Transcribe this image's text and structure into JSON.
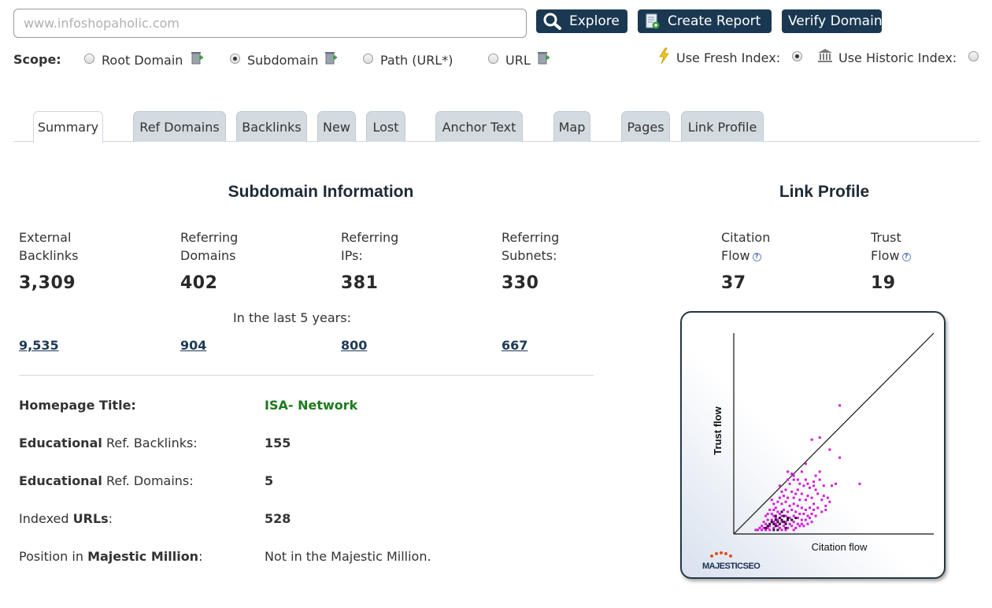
{
  "search": {
    "placeholder": "www.infoshopaholic.com",
    "value": ""
  },
  "toolbar": {
    "explore_label": "Explore",
    "create_report_label": "Create Report",
    "verify_domain_label": "Verify Domain"
  },
  "scope": {
    "label": "Scope:",
    "options": [
      {
        "label": "Root Domain",
        "selected": false
      },
      {
        "label": "Subdomain",
        "selected": true
      },
      {
        "label": "Path (URL*)",
        "selected": false
      },
      {
        "label": "URL",
        "selected": false
      }
    ],
    "fresh_index_label": "Use Fresh Index:",
    "historic_index_label": "Use Historic Index:",
    "fresh_selected": true
  },
  "tabs": [
    {
      "label": "Summary",
      "active": true
    },
    {
      "label": "Ref Domains"
    },
    {
      "label": "Backlinks"
    },
    {
      "label": "New"
    },
    {
      "label": "Lost"
    },
    {
      "label": "Anchor Text"
    },
    {
      "label": "Map"
    },
    {
      "label": "Pages"
    },
    {
      "label": "Link Profile"
    }
  ],
  "subdomain_info": {
    "title": "Subdomain Information",
    "stats": [
      {
        "label_line1": "External",
        "label_line2": "Backlinks",
        "value": "3,309",
        "history": "9,535"
      },
      {
        "label_line1": "Referring",
        "label_line2": "Domains",
        "value": "402",
        "history": "904"
      },
      {
        "label_line1": "Referring",
        "label_line2": "IPs:",
        "value": "381",
        "history": "800"
      },
      {
        "label_line1": "Referring",
        "label_line2": "Subnets:",
        "value": "330",
        "history": "667"
      }
    ],
    "history_caption": "In the last 5 years:",
    "details": {
      "homepage_title_label": "Homepage Title:",
      "homepage_title_value": "ISA- Network",
      "edu_backlinks_bold": "Educational",
      "edu_backlinks_rest": " Ref. Backlinks:",
      "edu_backlinks_value": "155",
      "edu_domains_bold": "Educational",
      "edu_domains_rest": " Ref. Domains:",
      "edu_domains_value": "5",
      "indexed_pre": "Indexed ",
      "indexed_bold": "URLs",
      "indexed_post": ":",
      "indexed_value": "528",
      "position_pre": "Position in ",
      "position_bold": "Majestic Million",
      "position_post": ":",
      "position_value": "Not in the Majestic Million."
    }
  },
  "link_profile": {
    "title": "Link Profile",
    "citation_line1": "Citation",
    "citation_line2": "Flow",
    "citation_value": "37",
    "trust_line1": "Trust",
    "trust_line2": "Flow",
    "trust_value": "19",
    "help_icon": "question-circle-icon"
  },
  "chart_data": {
    "type": "scatter",
    "xlabel": "Citation flow",
    "ylabel": "Trust flow",
    "xlim": [
      0,
      100
    ],
    "ylim": [
      0,
      100
    ],
    "diagonal": true,
    "grid": false,
    "logo_text": "MAJESTICSEO",
    "colors": {
      "points": "#d21fd2",
      "dense_points": "#3b0f3b",
      "axis": "#111111"
    },
    "series": [
      {
        "name": "",
        "points": [
          [
            53,
            64
          ],
          [
            43,
            48
          ],
          [
            39,
            47
          ],
          [
            48,
            42
          ],
          [
            53,
            38
          ],
          [
            36,
            35
          ],
          [
            43,
            31
          ],
          [
            30,
            29
          ],
          [
            34,
            31
          ],
          [
            27,
            27
          ],
          [
            36,
            27
          ],
          [
            40,
            26
          ],
          [
            45,
            24
          ],
          [
            49,
            24
          ],
          [
            51,
            25
          ],
          [
            63,
            25
          ],
          [
            48,
            16
          ],
          [
            29,
            30
          ],
          [
            30,
            27
          ],
          [
            32,
            27
          ],
          [
            28,
            25
          ],
          [
            35,
            24
          ],
          [
            32,
            22
          ],
          [
            38,
            23
          ],
          [
            41,
            22
          ],
          [
            45,
            19
          ],
          [
            47,
            18
          ],
          [
            44,
            17
          ],
          [
            46,
            14
          ],
          [
            40,
            15
          ],
          [
            26,
            22
          ],
          [
            29,
            21
          ],
          [
            31,
            20
          ],
          [
            34,
            20
          ],
          [
            37,
            19
          ],
          [
            27,
            18
          ],
          [
            30,
            18
          ],
          [
            33,
            17
          ],
          [
            36,
            17
          ],
          [
            39,
            18
          ],
          [
            42,
            20
          ],
          [
            33,
            25
          ],
          [
            37,
            25
          ],
          [
            40,
            24
          ],
          [
            43,
            27
          ],
          [
            41,
            29
          ],
          [
            23,
            18
          ],
          [
            24,
            15
          ],
          [
            26,
            16
          ],
          [
            28,
            14
          ],
          [
            30,
            15
          ],
          [
            32,
            14
          ],
          [
            34,
            13
          ],
          [
            36,
            12
          ],
          [
            38,
            13
          ],
          [
            40,
            12
          ],
          [
            42,
            13
          ],
          [
            44,
            11
          ],
          [
            46,
            12
          ],
          [
            25,
            12
          ],
          [
            27,
            11
          ],
          [
            29,
            12
          ],
          [
            31,
            11
          ],
          [
            33,
            10
          ],
          [
            35,
            10
          ],
          [
            37,
            9
          ],
          [
            39,
            10
          ],
          [
            41,
            9
          ],
          [
            21,
            13
          ],
          [
            22,
            11
          ],
          [
            23,
            10
          ],
          [
            24,
            9
          ],
          [
            26,
            9
          ],
          [
            28,
            8
          ],
          [
            30,
            9
          ],
          [
            32,
            8
          ],
          [
            34,
            7
          ],
          [
            36,
            7
          ],
          [
            38,
            8
          ],
          [
            20,
            9
          ],
          [
            21,
            8
          ],
          [
            22,
            7
          ],
          [
            24,
            6
          ],
          [
            26,
            6
          ],
          [
            28,
            5
          ],
          [
            30,
            6
          ],
          [
            32,
            5
          ],
          [
            34,
            5
          ],
          [
            19,
            10
          ],
          [
            19,
            7
          ],
          [
            20,
            6
          ],
          [
            21,
            5
          ],
          [
            22,
            4
          ],
          [
            23,
            3
          ],
          [
            25,
            4
          ],
          [
            27,
            3
          ],
          [
            29,
            4
          ],
          [
            31,
            3
          ],
          [
            33,
            4
          ],
          [
            35,
            4
          ],
          [
            37,
            5
          ],
          [
            39,
            6
          ],
          [
            20,
            3
          ],
          [
            18,
            4
          ],
          [
            17,
            3
          ],
          [
            16,
            2
          ],
          [
            18,
            2
          ],
          [
            24,
            2
          ],
          [
            26,
            2
          ],
          [
            30,
            2
          ],
          [
            15,
            6
          ],
          [
            16,
            5
          ],
          [
            17,
            7
          ],
          [
            14,
            4
          ],
          [
            13,
            3
          ],
          [
            15,
            3
          ],
          [
            12,
            2
          ],
          [
            14,
            2
          ],
          [
            11,
            2
          ],
          [
            20,
            12
          ],
          [
            18,
            12
          ],
          [
            17,
            10
          ],
          [
            16,
            9
          ],
          [
            22,
            16
          ],
          [
            25,
            19
          ],
          [
            24,
            21
          ],
          [
            20,
            15
          ],
          [
            19,
            17
          ],
          [
            23,
            24
          ],
          [
            27,
            31
          ]
        ]
      },
      {
        "name": "",
        "points": [
          [
            19,
            6
          ],
          [
            20,
            5
          ],
          [
            21,
            7
          ],
          [
            22,
            6
          ],
          [
            23,
            5
          ],
          [
            24,
            7
          ],
          [
            25,
            6
          ],
          [
            26,
            5
          ],
          [
            27,
            7
          ],
          [
            21,
            4
          ],
          [
            18,
            5
          ],
          [
            17,
            4
          ],
          [
            16,
            3
          ],
          [
            23,
            8
          ],
          [
            25,
            9
          ],
          [
            27,
            8
          ],
          [
            29,
            7
          ],
          [
            31,
            8
          ],
          [
            24,
            11
          ],
          [
            21,
            9
          ],
          [
            26,
            3
          ],
          [
            22,
            2
          ],
          [
            20,
            2
          ]
        ]
      }
    ]
  }
}
